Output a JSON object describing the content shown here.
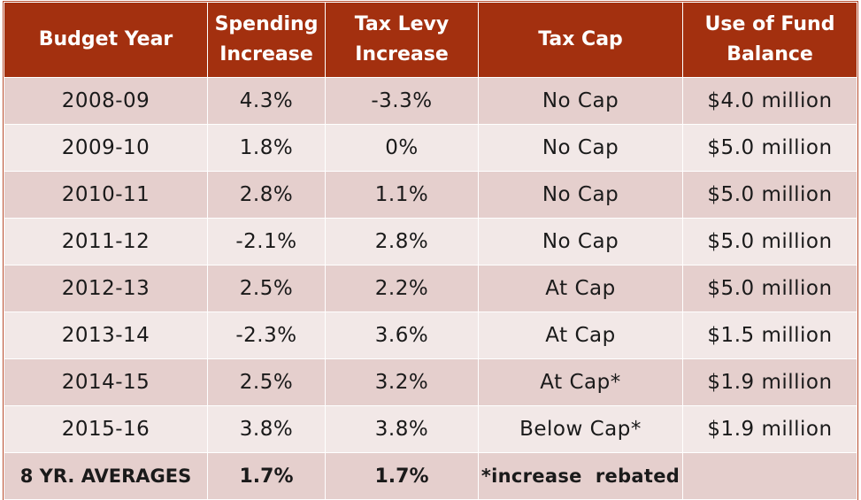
{
  "headers": {
    "budget_year": "Budget Year",
    "spending_line1": "Spending",
    "spending_line2": "Increase",
    "levy_line1": "Tax Levy",
    "levy_line2": "Increase",
    "tax_cap": "Tax Cap",
    "fund_line1": "Use of Fund",
    "fund_line2": "Balance"
  },
  "rows": [
    {
      "year": "2008-09",
      "spending": "4.3%",
      "levy": "-3.3%",
      "cap": "No Cap",
      "fund": "$4.0 million"
    },
    {
      "year": "2009-10",
      "spending": "1.8%",
      "levy": "0%",
      "cap": "No Cap",
      "fund": "$5.0 million"
    },
    {
      "year": "2010-11",
      "spending": "2.8%",
      "levy": "1.1%",
      "cap": "No Cap",
      "fund": "$5.0 million"
    },
    {
      "year": "2011-12",
      "spending": "-2.1%",
      "levy": "2.8%",
      "cap": "No Cap",
      "fund": "$5.0 million"
    },
    {
      "year": "2012-13",
      "spending": "2.5%",
      "levy": "2.2%",
      "cap": "At Cap",
      "fund": "$5.0 million"
    },
    {
      "year": "2013-14",
      "spending": "-2.3%",
      "levy": "3.6%",
      "cap": "At Cap",
      "fund": "$1.5 million"
    },
    {
      "year": "2014-15",
      "spending": "2.5%",
      "levy": "3.2%",
      "cap": "At Cap*",
      "fund": "$1.9 million"
    },
    {
      "year": "2015-16",
      "spending": "3.8%",
      "levy": "3.8%",
      "cap": "Below Cap*",
      "fund": "$1.9 million"
    }
  ],
  "averages": {
    "label": "8 YR. AVERAGES",
    "spending": "1.7%",
    "levy": "1.7%",
    "note": "*increase  rebated",
    "fund": ""
  },
  "colors": {
    "header_bg": "#a3300f",
    "row_dark": "#e5cfcd",
    "row_light": "#f2e8e7"
  }
}
